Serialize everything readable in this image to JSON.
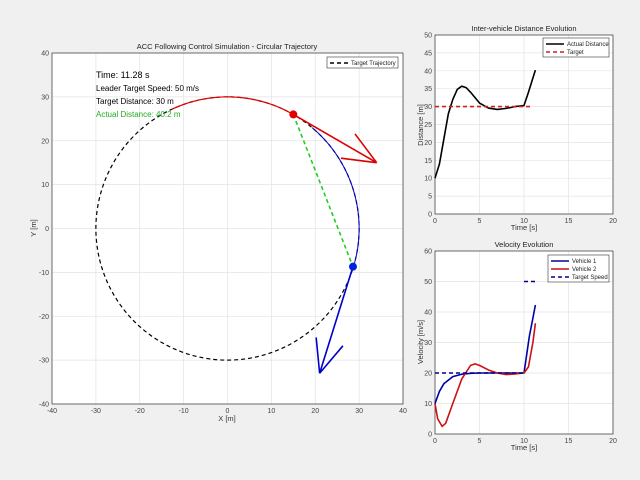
{
  "chart_data": [
    {
      "type": "line",
      "title": "ACC Following Control Simulation - Circular Trajectory",
      "xlabel": "X [m]",
      "ylabel": "Y [m]",
      "xlim": [
        -40,
        40
      ],
      "ylim": [
        -40,
        40
      ],
      "xticks": [
        -40,
        -30,
        -20,
        -10,
        0,
        10,
        20,
        30,
        40
      ],
      "yticks": [
        -40,
        -30,
        -20,
        -10,
        0,
        10,
        20,
        30,
        40
      ],
      "grid": true,
      "legend": {
        "placement": "top-right",
        "entries": [
          "Target Trajectory"
        ]
      },
      "target_circle": {
        "center": [
          0,
          0
        ],
        "radius": 30,
        "color": "#000000",
        "style": "dashed"
      },
      "leader": {
        "position": [
          15,
          26
        ],
        "arrow_tip": [
          34,
          15
        ],
        "trail_angles_deg": [
          115,
          60
        ],
        "color": "#dd0000"
      },
      "follower": {
        "position": [
          28.6,
          -8.7
        ],
        "arrow_tip": [
          21,
          -33
        ],
        "trail_angles_deg": [
          50,
          -17
        ],
        "color": "#0000cc"
      },
      "distance_line": {
        "color": "#22cc22",
        "style": "dashed"
      },
      "annotations": {
        "time": "Time: 11.28 s",
        "speed": "Leader Target Speed: 50 m/s",
        "target": "Target Distance: 30 m",
        "actual": "Actual Distance: 40.2 m"
      }
    },
    {
      "type": "line",
      "title": "Inter-vehicle Distance Evolution",
      "xlabel": "Time [s]",
      "ylabel": "Distance [m]",
      "xlim": [
        0,
        20
      ],
      "ylim": [
        0,
        50
      ],
      "xticks": [
        0,
        5,
        10,
        15,
        20
      ],
      "yticks": [
        0,
        5,
        10,
        15,
        20,
        25,
        30,
        35,
        40,
        45,
        50
      ],
      "grid": true,
      "legend": "top-right",
      "series": [
        {
          "name": "Actual Distance",
          "color": "#000000",
          "style": "solid",
          "x": [
            0,
            0.5,
            1,
            1.5,
            2,
            2.5,
            3,
            3.5,
            4,
            5,
            6,
            7,
            8,
            9,
            10,
            10.5,
            11,
            11.28
          ],
          "y": [
            10,
            14,
            21,
            28,
            32,
            34.8,
            35.7,
            35.3,
            34,
            31,
            29.6,
            29.2,
            29.5,
            30,
            30.3,
            34,
            38,
            40.2
          ]
        },
        {
          "name": "Target",
          "color": "#cc2222",
          "style": "dashed",
          "x": [
            0,
            11
          ],
          "y": [
            30,
            30
          ]
        }
      ]
    },
    {
      "type": "line",
      "title": "Velocity Evolution",
      "xlabel": "Time [s]",
      "ylabel": "Velocity [m/s]",
      "xlim": [
        0,
        20
      ],
      "ylim": [
        0,
        60
      ],
      "xticks": [
        0,
        5,
        10,
        15,
        20
      ],
      "yticks": [
        0,
        10,
        20,
        30,
        40,
        50,
        60
      ],
      "grid": true,
      "legend": "top-right",
      "series": [
        {
          "name": "Vehicle 1",
          "color": "#0000aa",
          "style": "solid",
          "x": [
            0,
            0.5,
            1,
            2,
            3,
            4,
            5,
            7,
            10,
            10.3,
            10.6,
            11,
            11.28
          ],
          "y": [
            10,
            14,
            16.5,
            18.8,
            19.6,
            19.9,
            20,
            20,
            20,
            26,
            32,
            38,
            42.3
          ]
        },
        {
          "name": "Vehicle 2",
          "color": "#cc1111",
          "style": "solid",
          "x": [
            0,
            0.3,
            0.8,
            1.2,
            2,
            3,
            4,
            4.5,
            5,
            6,
            7,
            8,
            9,
            10,
            10.5,
            11,
            11.28
          ],
          "y": [
            10,
            5,
            2.5,
            3.5,
            10,
            18,
            22.5,
            23,
            22.5,
            21,
            20,
            19.5,
            19.7,
            20,
            22,
            30,
            36.3
          ]
        },
        {
          "name": "Target Speed",
          "color": "#000088",
          "style": "dashed",
          "segments": [
            {
              "x": [
                0,
                10
              ],
              "y": [
                20,
                20
              ]
            },
            {
              "x": [
                10,
                11.28
              ],
              "y": [
                50,
                50
              ]
            }
          ]
        }
      ]
    }
  ]
}
